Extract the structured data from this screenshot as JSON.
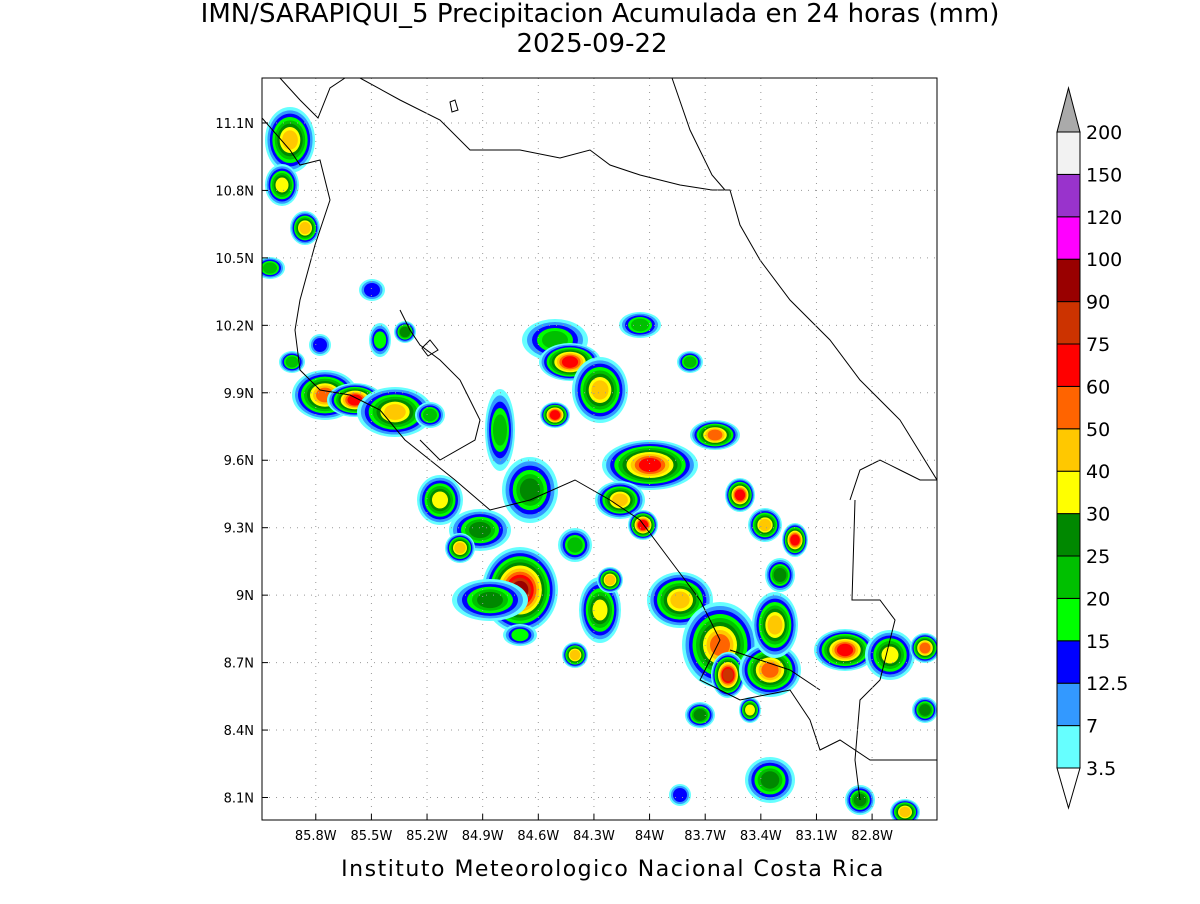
{
  "title": "IMN/SARAPIQUI_5 Precipitacion Acumulada en 24 horas (mm)",
  "subtitle": "2025-09-22",
  "map": {
    "xlim": [
      -86.09,
      -82.45
    ],
    "ylim": [
      8.0,
      11.3
    ],
    "xticks": [
      {
        "value": -85.8,
        "label": "85.8W"
      },
      {
        "value": -85.5,
        "label": "85.5W"
      },
      {
        "value": -85.2,
        "label": "85.2W"
      },
      {
        "value": -84.9,
        "label": "84.9W"
      },
      {
        "value": -84.6,
        "label": "84.6W"
      },
      {
        "value": -84.3,
        "label": "84.3W"
      },
      {
        "value": -84.0,
        "label": "84W"
      },
      {
        "value": -83.7,
        "label": "83.7W"
      },
      {
        "value": -83.4,
        "label": "83.4W"
      },
      {
        "value": -83.1,
        "label": "83.1W"
      },
      {
        "value": -82.8,
        "label": "82.8W"
      }
    ],
    "yticks": [
      {
        "value": 11.1,
        "label": "11.1N"
      },
      {
        "value": 10.8,
        "label": "10.8N"
      },
      {
        "value": 10.5,
        "label": "10.5N"
      },
      {
        "value": 10.2,
        "label": "10.2N"
      },
      {
        "value": 9.9,
        "label": "9.9N"
      },
      {
        "value": 9.6,
        "label": "9.6N"
      },
      {
        "value": 9.3,
        "label": "9.3N"
      },
      {
        "value": 9.0,
        "label": "9N"
      },
      {
        "value": 8.7,
        "label": "8.7N"
      },
      {
        "value": 8.4,
        "label": "8.4N"
      },
      {
        "value": 8.1,
        "label": "8.1N"
      }
    ],
    "grid": true
  },
  "colorbar": {
    "levels": [
      3.5,
      7,
      12.5,
      15,
      20,
      25,
      30,
      40,
      50,
      60,
      75,
      90,
      100,
      120,
      150,
      200
    ],
    "colors": [
      "#ffffff",
      "#66ffff",
      "#3399ff",
      "#0000ff",
      "#00ff00",
      "#00c000",
      "#008800",
      "#ffff00",
      "#ffc800",
      "#ff6400",
      "#ff0000",
      "#cc3300",
      "#990000",
      "#ff00ff",
      "#9933cc",
      "#f2f2f2",
      "#aaaaaa"
    ]
  },
  "footer": "Instituto Meteorologico Nacional Costa Rica"
}
